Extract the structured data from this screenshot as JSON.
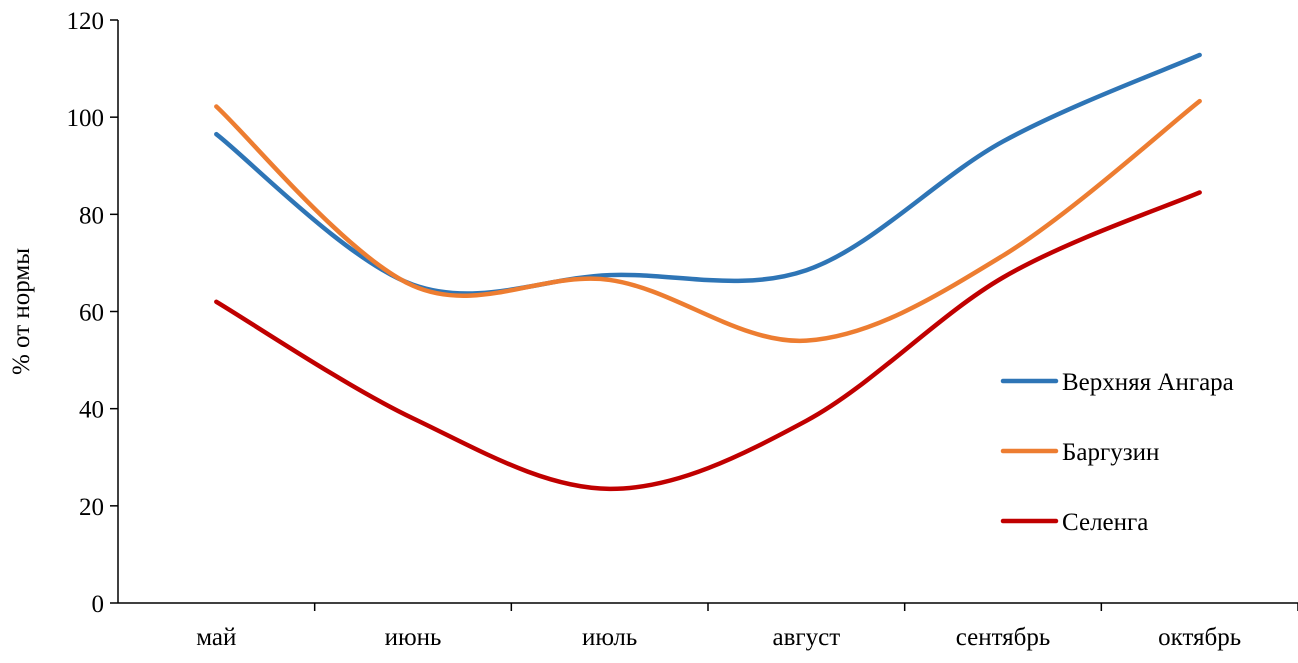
{
  "chart_data": {
    "type": "line",
    "title": "",
    "xlabel": "",
    "ylabel": "% от нормы",
    "ylim": [
      0,
      120
    ],
    "yticks": [
      0,
      20,
      40,
      60,
      80,
      100,
      120
    ],
    "categories": [
      "май",
      "июнь",
      "июль",
      "август",
      "сентябрь",
      "октябрь"
    ],
    "grid": false,
    "legend_position": "right",
    "smooth": true,
    "series": [
      {
        "name": "Верхняя Ангара",
        "color": "#2E75B6",
        "values": [
          96.5,
          65.5,
          67.5,
          68.5,
          95.0,
          112.8
        ]
      },
      {
        "name": "Баргузин",
        "color": "#ED7D31",
        "values": [
          102.2,
          65.3,
          66.5,
          54.0,
          71.5,
          103.3
        ]
      },
      {
        "name": "Селенга",
        "color": "#C00000",
        "values": [
          62.0,
          38.0,
          23.5,
          37.5,
          67.0,
          84.5
        ]
      }
    ]
  }
}
